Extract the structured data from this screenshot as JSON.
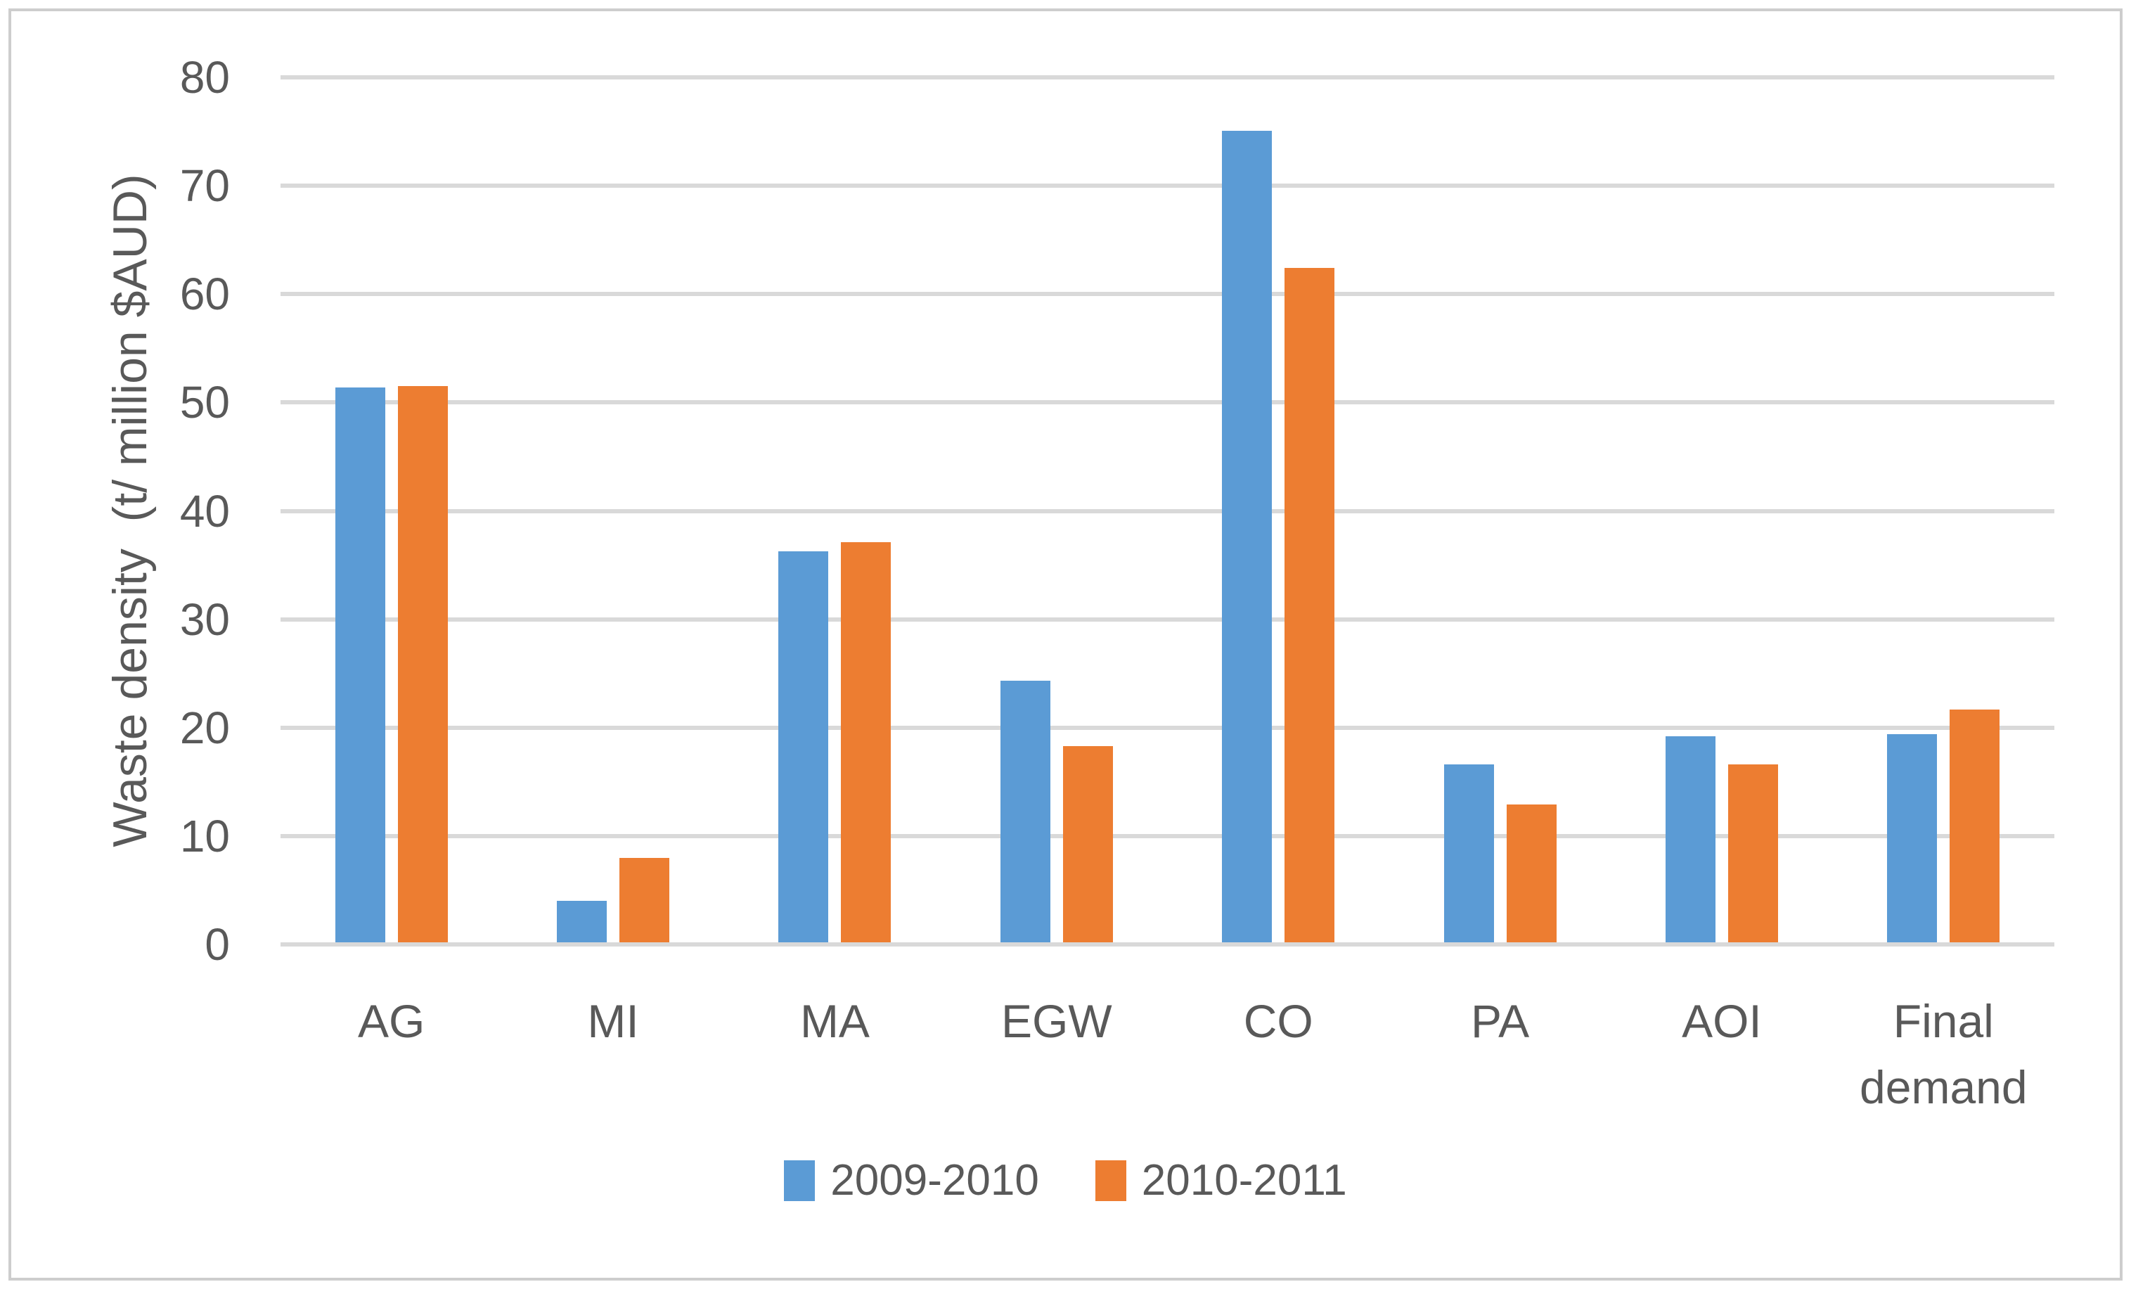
{
  "figure": {
    "background_color": "#ffffff",
    "border_color": "#cdcdcd",
    "text_color": "#595959",
    "gridline_color": "#d9d9d9"
  },
  "chart_data": {
    "type": "bar",
    "title": "",
    "ylabel": "Waste density  (t/ million $AUD)",
    "xlabel": "",
    "categories": [
      "AG",
      "MI",
      "MA",
      "EGW",
      "CO",
      "PA",
      "AOI",
      "Final demand"
    ],
    "series": [
      {
        "name": "2009-2010",
        "color": "#5B9BD5",
        "values": [
          51.4,
          4.0,
          36.3,
          24.3,
          75.1,
          16.6,
          19.2,
          19.4
        ]
      },
      {
        "name": "2010-2011",
        "color": "#ED7D31",
        "values": [
          51.5,
          8.0,
          37.1,
          18.3,
          62.4,
          12.9,
          16.6,
          21.7
        ]
      }
    ],
    "ylim": [
      0,
      80
    ],
    "ytick_step": 10,
    "ytick_labels": [
      "0",
      "10",
      "20",
      "30",
      "40",
      "50",
      "60",
      "70",
      "80"
    ],
    "grid": true,
    "legend_position": "bottom"
  }
}
